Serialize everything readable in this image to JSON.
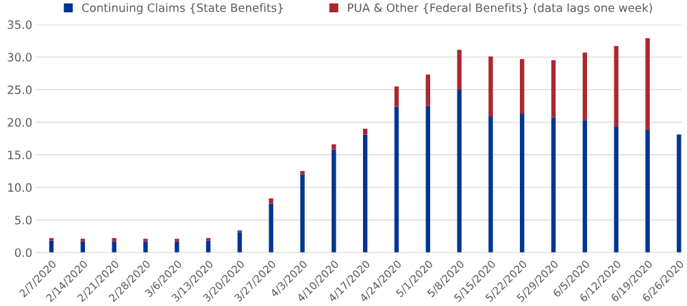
{
  "chart_data": {
    "type": "bar",
    "stacked": true,
    "categories": [
      "2/7/2020",
      "2/14/2020",
      "2/21/2020",
      "2/28/2020",
      "3/6/2020",
      "3/13/2020",
      "3/20/2020",
      "3/27/2020",
      "4/3/2020",
      "4/10/2020",
      "4/17/2020",
      "4/24/2020",
      "5/1/2020",
      "5/8/2020",
      "5/15/2020",
      "5/22/2020",
      "5/29/2020",
      "6/5/2020",
      "6/12/2020",
      "6/19/2020",
      "6/26/2020"
    ],
    "series": [
      {
        "name": "Continuing Claims {State Benefits}",
        "color": "#003591",
        "values": [
          1.8,
          1.7,
          1.7,
          1.7,
          1.7,
          1.8,
          3.1,
          7.5,
          12.0,
          15.8,
          18.1,
          22.4,
          22.5,
          25.0,
          20.9,
          21.3,
          20.7,
          20.3,
          19.4,
          18.8,
          18.1
        ]
      },
      {
        "name": "PUA & Other {Federal Benefits} (data lags one week)",
        "color": "#ab2732",
        "values": [
          0.4,
          0.4,
          0.5,
          0.4,
          0.4,
          0.4,
          0.3,
          0.8,
          0.5,
          0.8,
          0.9,
          3.1,
          4.8,
          6.1,
          9.2,
          8.4,
          8.8,
          10.4,
          12.3,
          14.1,
          null
        ]
      }
    ],
    "ylim": [
      0,
      35
    ],
    "yticks": [
      {
        "value": 0,
        "label": "0.0"
      },
      {
        "value": 5,
        "label": "5.0"
      },
      {
        "value": 10,
        "label": "10.0"
      },
      {
        "value": 15,
        "label": "15.0"
      },
      {
        "value": 20,
        "label": "20.0"
      },
      {
        "value": 25,
        "label": "25.0"
      },
      {
        "value": 30,
        "label": "30.0"
      },
      {
        "value": 35,
        "label": "35.0"
      }
    ],
    "grid": "y",
    "legend": "top"
  }
}
